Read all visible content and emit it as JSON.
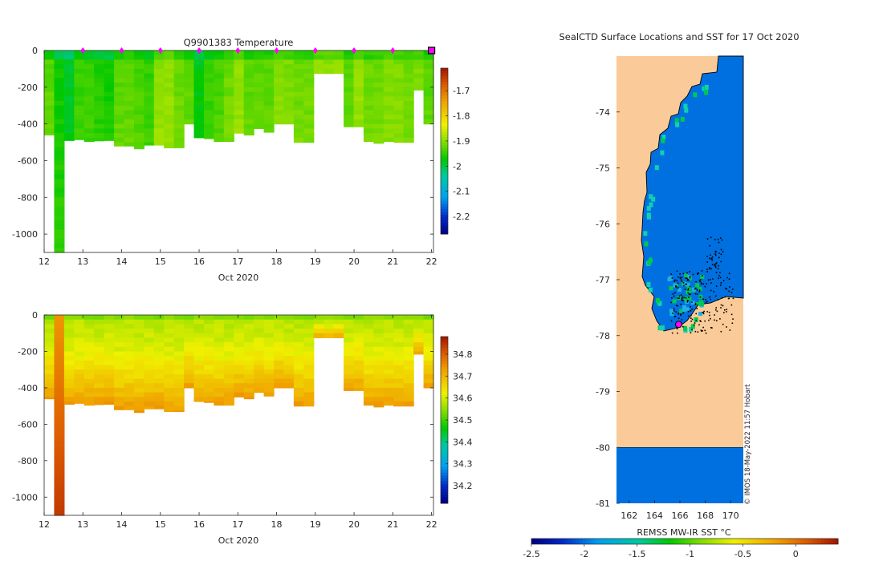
{
  "chart_data": [
    {
      "type": "heatmap",
      "title": "Q9901383  Temperature",
      "xlabel": "Oct 2020",
      "ylabel": "",
      "xlim": [
        12,
        22.05
      ],
      "ylim": [
        -1100,
        0
      ],
      "x_ticks": [
        12,
        13,
        14,
        15,
        16,
        17,
        18,
        19,
        20,
        21,
        22
      ],
      "y_ticks": [
        0,
        -200,
        -400,
        -600,
        -800,
        -1000
      ],
      "colorbar": {
        "range": [
          -2.27,
          -1.61
        ],
        "ticks": [
          -1.7,
          -1.8,
          -1.9,
          -2,
          -2.1,
          -2.2
        ]
      },
      "profile_markers": [
        13,
        14,
        15,
        16,
        17,
        18,
        19,
        20,
        21
      ],
      "latest_marker": 22,
      "profile_depths": [
        460,
        1100,
        490,
        485,
        495,
        492,
        490,
        520,
        520,
        535,
        515,
        515,
        530,
        530,
        400,
        475,
        480,
        495,
        495,
        450,
        460,
        425,
        445,
        400,
        400,
        500,
        500,
        125,
        125,
        125,
        415,
        415,
        495,
        505,
        495,
        500,
        500,
        215,
        400
      ],
      "profile_values": [
        -1.93,
        -1.97,
        -1.99,
        -1.95,
        -1.95,
        -1.96,
        -1.97,
        -1.93,
        -1.93,
        -1.94,
        -1.95,
        -1.9,
        -1.9,
        -1.92,
        -1.93,
        -1.98,
        -1.95,
        -1.94,
        -1.92,
        -1.9,
        -1.93,
        -1.93,
        -1.93,
        -1.91,
        -1.91,
        -1.92,
        -1.92,
        -1.9,
        -1.9,
        -1.9,
        -1.93,
        -1.9,
        -1.92,
        -1.92,
        -1.91,
        -1.91,
        -1.92,
        -1.91,
        -1.93
      ]
    },
    {
      "type": "heatmap",
      "title": "",
      "xlabel": "Oct 2020",
      "ylabel": "",
      "xlim": [
        12,
        22.05
      ],
      "ylim": [
        -1100,
        0
      ],
      "x_ticks": [
        12,
        13,
        14,
        15,
        16,
        17,
        18,
        19,
        20,
        21,
        22
      ],
      "y_ticks": [
        0,
        -200,
        -400,
        -600,
        -800,
        -1000
      ],
      "colorbar": {
        "range": [
          34.12,
          34.88
        ],
        "ticks": [
          34.8,
          34.7,
          34.6,
          34.5,
          34.4,
          34.3,
          34.2
        ]
      },
      "profile_depths": [
        460,
        1100,
        490,
        485,
        495,
        492,
        490,
        520,
        520,
        535,
        515,
        515,
        530,
        530,
        400,
        475,
        480,
        495,
        495,
        450,
        460,
        425,
        445,
        400,
        400,
        500,
        500,
        125,
        125,
        125,
        415,
        415,
        495,
        505,
        495,
        500,
        500,
        215,
        400
      ],
      "surface_salinity": 34.58,
      "deep_salinity": 34.74
    },
    {
      "type": "map",
      "title": "SealCTD Surface Locations and SST for 17 Oct 2020",
      "xlabel": "",
      "colorbar_label": "REMSS MW-IR SST °C",
      "lon_range": [
        161,
        171
      ],
      "lat_range": [
        -81,
        -73
      ],
      "x_ticks": [
        162,
        164,
        166,
        168,
        170
      ],
      "y_ticks": [
        -74,
        -75,
        -76,
        -77,
        -78,
        -79,
        -80,
        -81
      ],
      "colorbar": {
        "range": [
          -2.5,
          0.4
        ],
        "ticks": [
          -2.5,
          -2,
          -1.5,
          -1,
          -0.5,
          0
        ]
      },
      "sea_sst": -2,
      "land_color": "#FACB98",
      "latest_position": {
        "lon": 165.9,
        "lat": -77.8
      },
      "credit": "© IMOS 18-May-2022 11:57 Hobart"
    }
  ]
}
